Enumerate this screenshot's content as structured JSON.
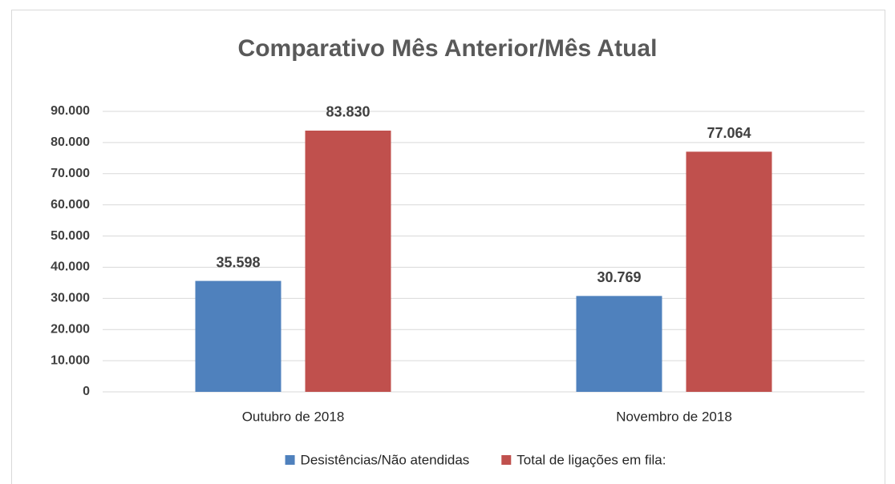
{
  "chart_data": {
    "type": "bar",
    "title": "Comparativo Mês Anterior/Mês Atual",
    "categories": [
      "Outubro de 2018",
      "Novembro de 2018"
    ],
    "series": [
      {
        "name": "Desistências/Não atendidas",
        "color": "#4f81bd",
        "values": [
          35598,
          30769
        ],
        "value_labels": [
          "35.598",
          "30.769"
        ]
      },
      {
        "name": "Total de ligações em fila:",
        "color": "#c0504d",
        "values": [
          83830,
          77064
        ],
        "value_labels": [
          "83.830",
          "77.064"
        ]
      }
    ],
    "ylim": [
      0,
      90000
    ],
    "yticks": [
      0,
      {
        "value": 10000,
        "label": "10.000"
      },
      {
        "value": 20000,
        "label": "20.000"
      },
      {
        "value": 30000,
        "label": "30.000"
      },
      {
        "value": 40000,
        "label": "40.000"
      },
      {
        "value": 50000,
        "label": "50.000"
      },
      {
        "value": 60000,
        "label": "60.000"
      },
      {
        "value": 70000,
        "label": "70.000"
      },
      {
        "value": 80000,
        "label": "80.000"
      },
      {
        "value": 90000,
        "label": "90.000"
      }
    ],
    "grid": true,
    "legend": "bottom"
  }
}
